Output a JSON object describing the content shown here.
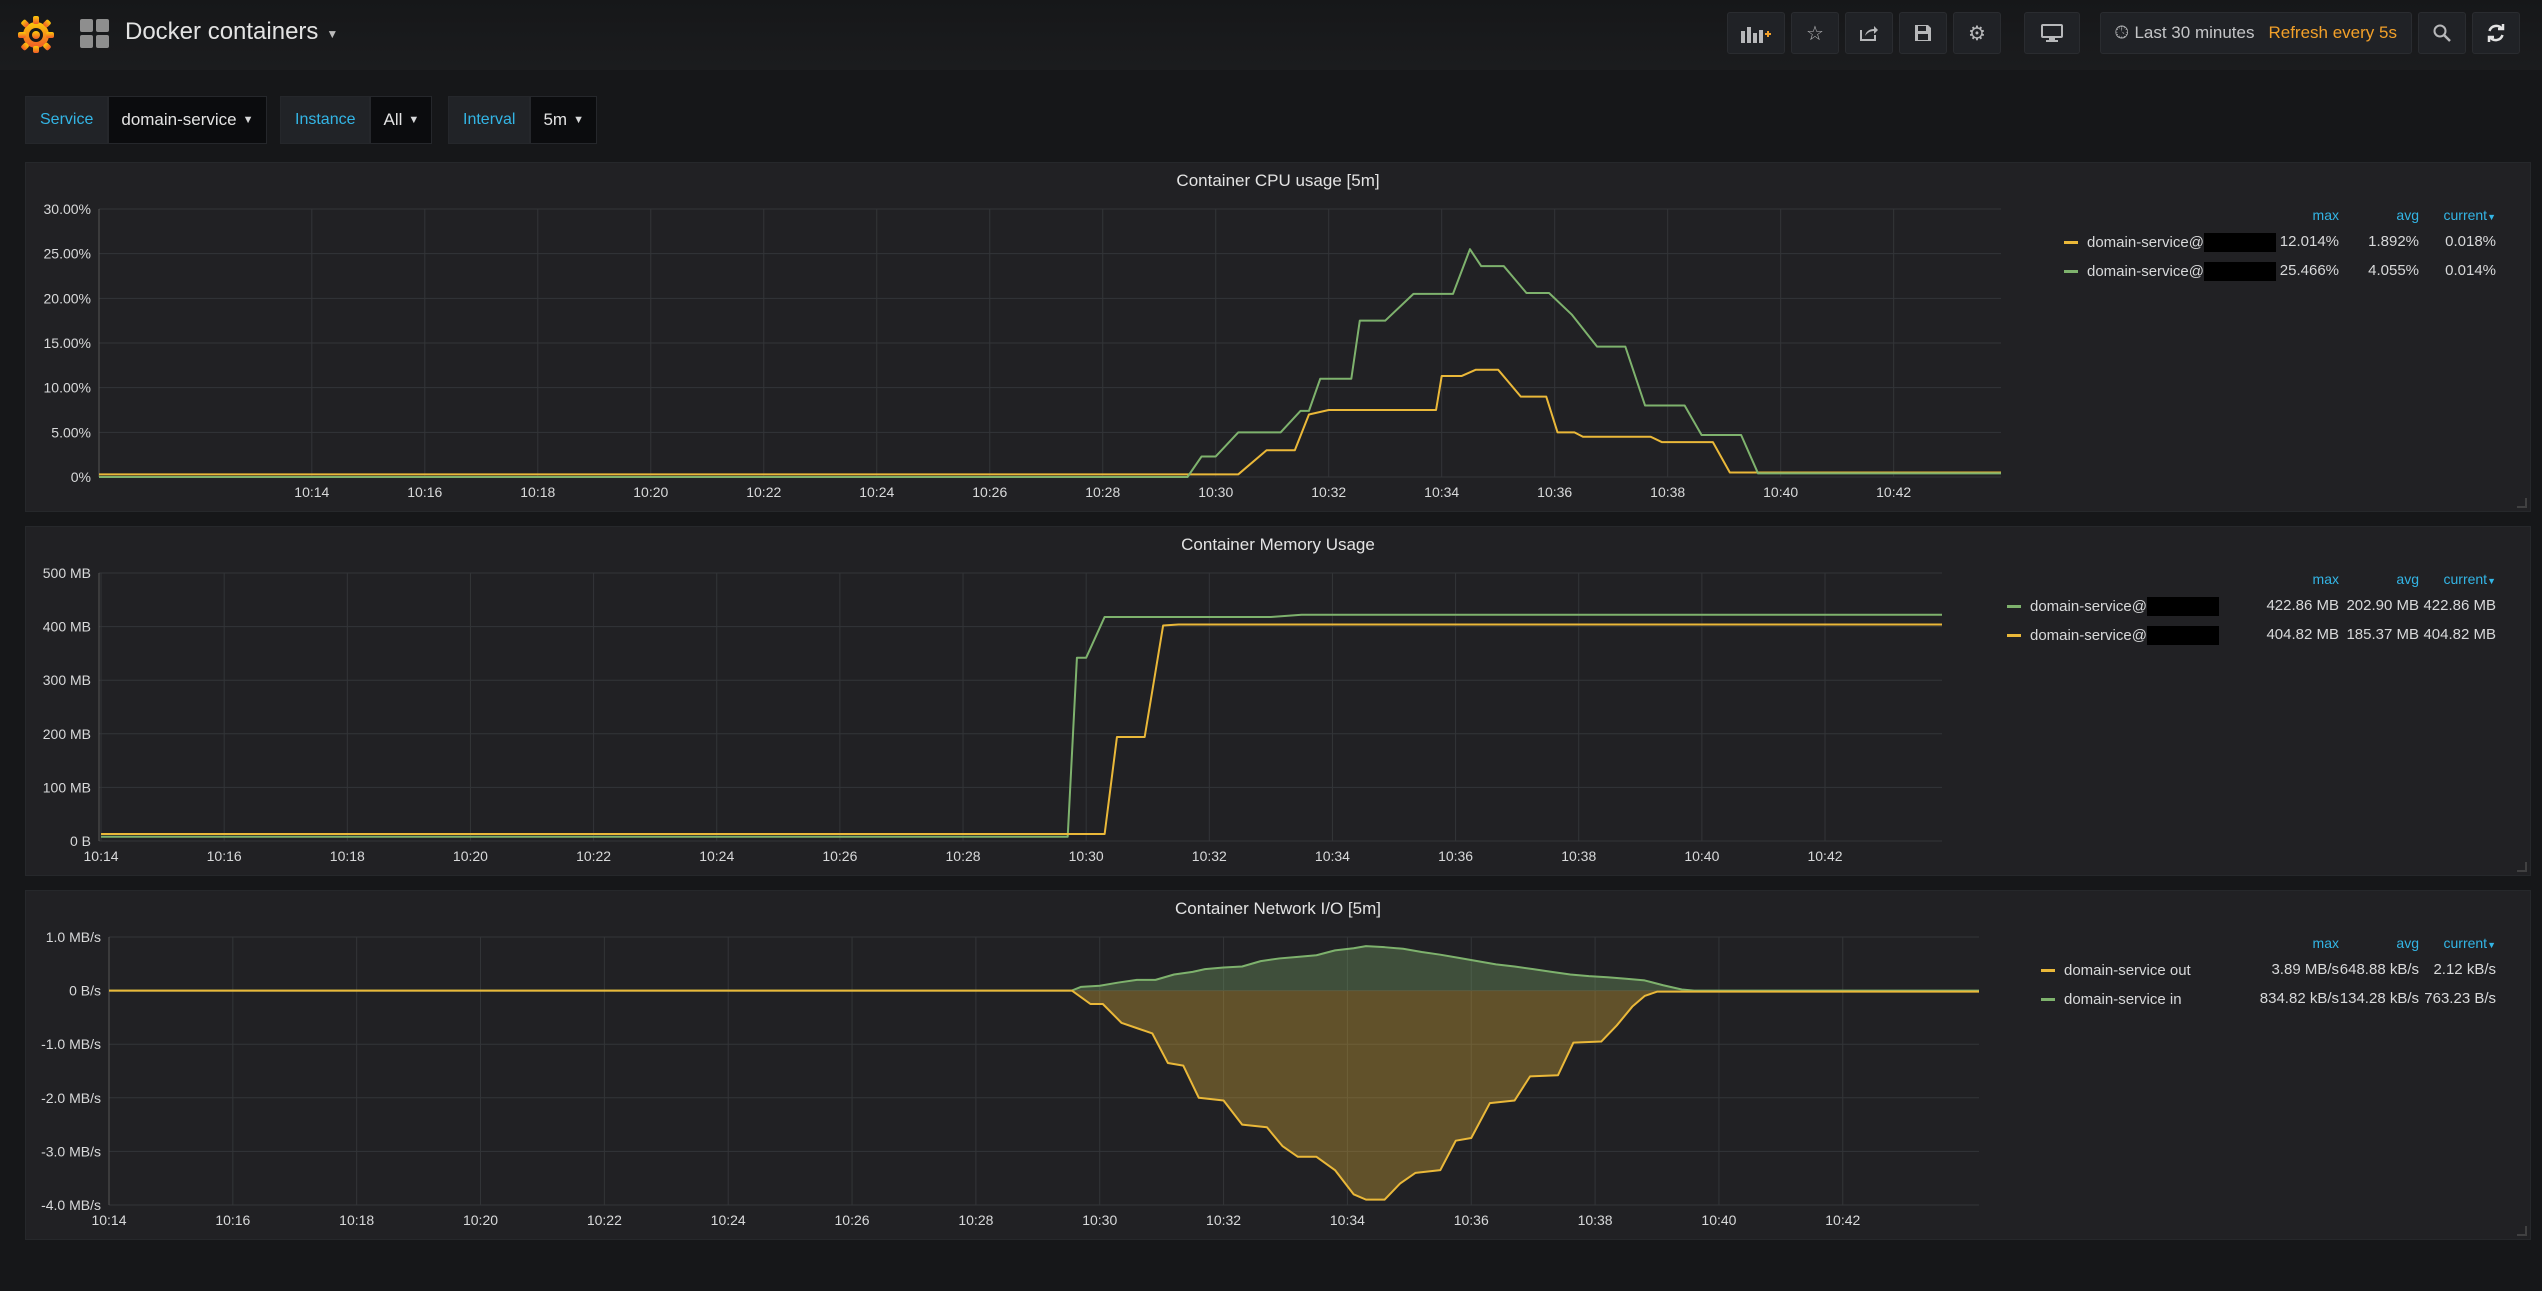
{
  "navbar": {
    "title": "Docker containers",
    "time_range": "Last 30 minutes",
    "refresh": "Refresh every 5s"
  },
  "variables": [
    {
      "label": "Service",
      "value": "domain-service"
    },
    {
      "label": "Instance",
      "value": "All"
    },
    {
      "label": "Interval",
      "value": "5m"
    }
  ],
  "colors": {
    "green": "#7eb26d",
    "yellow": "#eab839",
    "accent": "#33b5e5",
    "orange": "#f2a029"
  },
  "legend_headers": {
    "max": "max",
    "avg": "avg",
    "current": "current"
  },
  "panels": {
    "cpu": {
      "title": "Container CPU usage [5m]",
      "legend": [
        {
          "name": "domain-service@",
          "color": "#eab839",
          "max": "12.014%",
          "avg": "1.892%",
          "current": "0.018%"
        },
        {
          "name": "domain-service@",
          "color": "#7eb26d",
          "max": "25.466%",
          "avg": "4.055%",
          "current": "0.014%"
        }
      ]
    },
    "memory": {
      "title": "Container Memory Usage",
      "legend": [
        {
          "name": "domain-service@",
          "color": "#7eb26d",
          "max": "422.86 MB",
          "avg": "202.90 MB",
          "current": "422.86 MB"
        },
        {
          "name": "domain-service@",
          "color": "#eab839",
          "max": "404.82 MB",
          "avg": "185.37 MB",
          "current": "404.82 MB"
        }
      ]
    },
    "network": {
      "title": "Container Network I/O [5m]",
      "legend": [
        {
          "name": "domain-service out",
          "color": "#eab839",
          "max": "3.89 MB/s",
          "avg": "648.88 kB/s",
          "current": "2.12 kB/s"
        },
        {
          "name": "domain-service in",
          "color": "#7eb26d",
          "max": "834.82 kB/s",
          "avg": "134.28 kB/s",
          "current": "763.23 B/s"
        }
      ]
    }
  },
  "chart_data": [
    {
      "type": "line",
      "title": "Container CPU usage [5m]",
      "x_ticks": [
        "10:14",
        "10:16",
        "10:18",
        "10:20",
        "10:22",
        "10:24",
        "10:26",
        "10:28",
        "10:30",
        "10:32",
        "10:34",
        "10:36",
        "10:38",
        "10:40",
        "10:42"
      ],
      "y_ticks": [
        "0%",
        "5.00%",
        "10.00%",
        "15.00%",
        "20.00%",
        "25.00%",
        "30.00%"
      ],
      "ylim": [
        0,
        30
      ],
      "grid": true,
      "legend_position": "right",
      "series": [
        {
          "name": "domain-service@",
          "color": "#eab839",
          "points": [
            [
              10.233,
              0.3
            ],
            [
              29.75,
              0.3
            ],
            [
              30.4,
              0.3
            ],
            [
              30.9,
              3
            ],
            [
              31.4,
              3
            ],
            [
              31.65,
              7
            ],
            [
              32.0,
              7.5
            ],
            [
              33.9,
              7.5
            ],
            [
              34.0,
              11.3
            ],
            [
              34.35,
              11.3
            ],
            [
              34.6,
              12
            ],
            [
              35.0,
              12
            ],
            [
              35.4,
              9
            ],
            [
              35.85,
              9
            ],
            [
              36.05,
              5
            ],
            [
              36.35,
              5
            ],
            [
              36.5,
              4.5
            ],
            [
              37.7,
              4.5
            ],
            [
              37.9,
              3.9
            ],
            [
              38.8,
              3.9
            ],
            [
              39.1,
              0.5
            ],
            [
              43.9,
              0.5
            ]
          ]
        },
        {
          "name": "domain-service@",
          "color": "#7eb26d",
          "points": [
            [
              10.233,
              0
            ],
            [
              29.5,
              0
            ],
            [
              29.75,
              2.3
            ],
            [
              30.0,
              2.3
            ],
            [
              30.4,
              5
            ],
            [
              31.15,
              5
            ],
            [
              31.5,
              7.4
            ],
            [
              31.65,
              7.4
            ],
            [
              31.85,
              11
            ],
            [
              32.4,
              11
            ],
            [
              32.55,
              17.5
            ],
            [
              33.0,
              17.5
            ],
            [
              33.5,
              20.5
            ],
            [
              34.2,
              20.5
            ],
            [
              34.5,
              25.5
            ],
            [
              34.7,
              23.6
            ],
            [
              35.1,
              23.6
            ],
            [
              35.5,
              20.6
            ],
            [
              35.9,
              20.6
            ],
            [
              36.3,
              18.2
            ],
            [
              36.75,
              14.6
            ],
            [
              37.25,
              14.6
            ],
            [
              37.6,
              8
            ],
            [
              38.3,
              8
            ],
            [
              38.6,
              4.7
            ],
            [
              39.3,
              4.7
            ],
            [
              39.6,
              0.4
            ],
            [
              43.9,
              0.4
            ]
          ]
        }
      ]
    },
    {
      "type": "line",
      "title": "Container Memory Usage",
      "x_ticks": [
        "10:14",
        "10:16",
        "10:18",
        "10:20",
        "10:22",
        "10:24",
        "10:26",
        "10:28",
        "10:30",
        "10:32",
        "10:34",
        "10:36",
        "10:38",
        "10:40",
        "10:42"
      ],
      "y_ticks": [
        "0 B",
        "100 MB",
        "200 MB",
        "300 MB",
        "400 MB",
        "500 MB"
      ],
      "ylim": [
        0,
        500
      ],
      "grid": true,
      "legend_position": "right",
      "series": [
        {
          "name": "domain-service@",
          "color": "#7eb26d",
          "points": [
            [
              14,
              8
            ],
            [
              29.6,
              8
            ],
            [
              29.7,
              8
            ],
            [
              29.85,
              342
            ],
            [
              30.0,
              342
            ],
            [
              30.3,
              418
            ],
            [
              33.0,
              418
            ],
            [
              33.5,
              422
            ],
            [
              43.9,
              422
            ]
          ]
        },
        {
          "name": "domain-service@",
          "color": "#eab839",
          "points": [
            [
              14,
              13
            ],
            [
              30.3,
              13
            ],
            [
              30.5,
              194
            ],
            [
              30.95,
              194
            ],
            [
              31.25,
              402
            ],
            [
              31.5,
              404
            ],
            [
              43.9,
              404
            ]
          ]
        }
      ]
    },
    {
      "type": "area",
      "title": "Container Network I/O [5m]",
      "x_ticks": [
        "10:14",
        "10:16",
        "10:18",
        "10:20",
        "10:22",
        "10:24",
        "10:26",
        "10:28",
        "10:30",
        "10:32",
        "10:34",
        "10:36",
        "10:38",
        "10:40",
        "10:42"
      ],
      "y_ticks": [
        "-4.0 MB/s",
        "-3.0 MB/s",
        "-2.0 MB/s",
        "-1.0 MB/s",
        "0 B/s",
        "1.0 MB/s"
      ],
      "ylim": [
        -4.0,
        1.0
      ],
      "grid": true,
      "legend_position": "right",
      "series": [
        {
          "name": "domain-service in",
          "color": "#7eb26d",
          "points": [
            [
              14,
              0
            ],
            [
              29.55,
              0
            ],
            [
              29.7,
              0.07
            ],
            [
              30.0,
              0.09
            ],
            [
              30.3,
              0.15
            ],
            [
              30.6,
              0.2
            ],
            [
              30.9,
              0.2
            ],
            [
              31.2,
              0.3
            ],
            [
              31.5,
              0.35
            ],
            [
              31.7,
              0.4
            ],
            [
              32.0,
              0.43
            ],
            [
              32.3,
              0.45
            ],
            [
              32.6,
              0.55
            ],
            [
              32.9,
              0.6
            ],
            [
              33.2,
              0.63
            ],
            [
              33.5,
              0.66
            ],
            [
              33.8,
              0.75
            ],
            [
              34.1,
              0.79
            ],
            [
              34.3,
              0.83
            ],
            [
              34.6,
              0.81
            ],
            [
              34.9,
              0.78
            ],
            [
              35.2,
              0.72
            ],
            [
              35.5,
              0.67
            ],
            [
              35.8,
              0.61
            ],
            [
              36.1,
              0.55
            ],
            [
              36.4,
              0.49
            ],
            [
              36.7,
              0.45
            ],
            [
              37.0,
              0.4
            ],
            [
              37.3,
              0.35
            ],
            [
              37.6,
              0.3
            ],
            [
              37.9,
              0.27
            ],
            [
              38.2,
              0.25
            ],
            [
              38.5,
              0.22
            ],
            [
              38.8,
              0.19
            ],
            [
              39.1,
              0.1
            ],
            [
              39.4,
              0.02
            ],
            [
              39.6,
              0
            ],
            [
              44.2,
              0
            ]
          ]
        },
        {
          "name": "domain-service out",
          "color": "#eab839",
          "points": [
            [
              14,
              0
            ],
            [
              29.55,
              0
            ],
            [
              29.85,
              -0.25
            ],
            [
              30.05,
              -0.25
            ],
            [
              30.35,
              -0.6
            ],
            [
              30.6,
              -0.7
            ],
            [
              30.85,
              -0.8
            ],
            [
              31.1,
              -1.35
            ],
            [
              31.35,
              -1.4
            ],
            [
              31.6,
              -2.0
            ],
            [
              32.0,
              -2.05
            ],
            [
              32.3,
              -2.5
            ],
            [
              32.7,
              -2.55
            ],
            [
              32.95,
              -2.9
            ],
            [
              33.2,
              -3.1
            ],
            [
              33.5,
              -3.1
            ],
            [
              33.8,
              -3.35
            ],
            [
              34.1,
              -3.8
            ],
            [
              34.3,
              -3.9
            ],
            [
              34.6,
              -3.9
            ],
            [
              34.85,
              -3.6
            ],
            [
              35.1,
              -3.4
            ],
            [
              35.5,
              -3.35
            ],
            [
              35.75,
              -2.8
            ],
            [
              36.0,
              -2.75
            ],
            [
              36.3,
              -2.1
            ],
            [
              36.7,
              -2.05
            ],
            [
              36.95,
              -1.6
            ],
            [
              37.4,
              -1.58
            ],
            [
              37.65,
              -0.97
            ],
            [
              38.1,
              -0.95
            ],
            [
              38.35,
              -0.65
            ],
            [
              38.6,
              -0.3
            ],
            [
              38.8,
              -0.1
            ],
            [
              39.0,
              -0.02
            ],
            [
              44.2,
              -0.02
            ]
          ]
        }
      ]
    }
  ]
}
